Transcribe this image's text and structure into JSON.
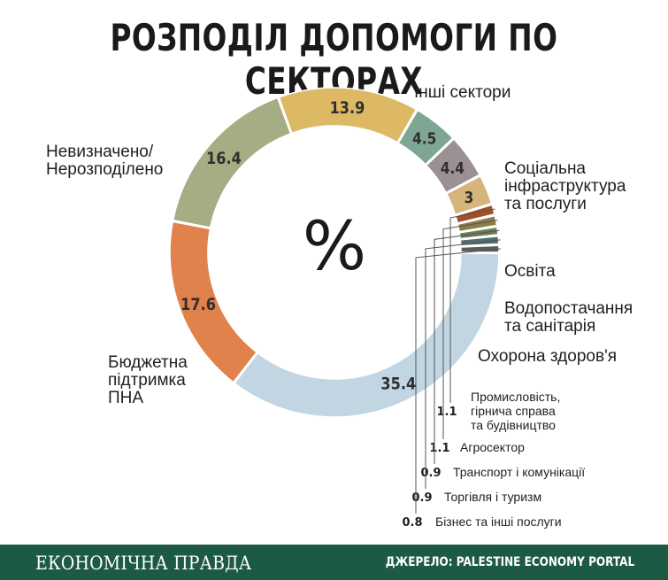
{
  "title": "РОЗПОДІЛ ДОПОМОГИ ПО СЕКТОРАХ",
  "center_symbol": "%",
  "footer": {
    "brand": "ЕКОНОМІЧНА ПРАВДА",
    "source": "ДЖЕРЕЛО: PALESTINE ECONOMY PORTAL",
    "background": "#1c5a44"
  },
  "chart_data": {
    "type": "pie",
    "donut": true,
    "unit": "%",
    "slices": [
      {
        "label": "Інші сектори",
        "value": 16.4,
        "color": "#a5ad84"
      },
      {
        "label": "Соціальна інфраструктура та послуги",
        "value": 13.9,
        "color": "#ddb865"
      },
      {
        "label": "Освіта",
        "value": 4.5,
        "color": "#7ea693"
      },
      {
        "label": "Водопостачання та санітарія",
        "value": 4.4,
        "color": "#9c9192"
      },
      {
        "label": "Охорона здоров'я",
        "value": 3,
        "color": "#d6b47a"
      },
      {
        "label": "Промисловість, гірнича справа та будівництво",
        "value": 1.1,
        "color": "#a34f26"
      },
      {
        "label": "Агросектор",
        "value": 1.1,
        "color": "#8b7d4a"
      },
      {
        "label": "Транспорт і комунікації",
        "value": 0.9,
        "color": "#6b7b52"
      },
      {
        "label": "Торгівля і туризм",
        "value": 0.9,
        "color": "#4f6f68"
      },
      {
        "label": "Бізнес та інші послуги",
        "value": 0.8,
        "color": "#5b5b5b"
      },
      {
        "label": "Бюджетна підтримка ПНА",
        "value": 35.4,
        "color": "#c2d5e3"
      },
      {
        "label": "Невизначено/ Нерозподілено",
        "value": 17.6,
        "color": "#e0824c"
      }
    ]
  }
}
